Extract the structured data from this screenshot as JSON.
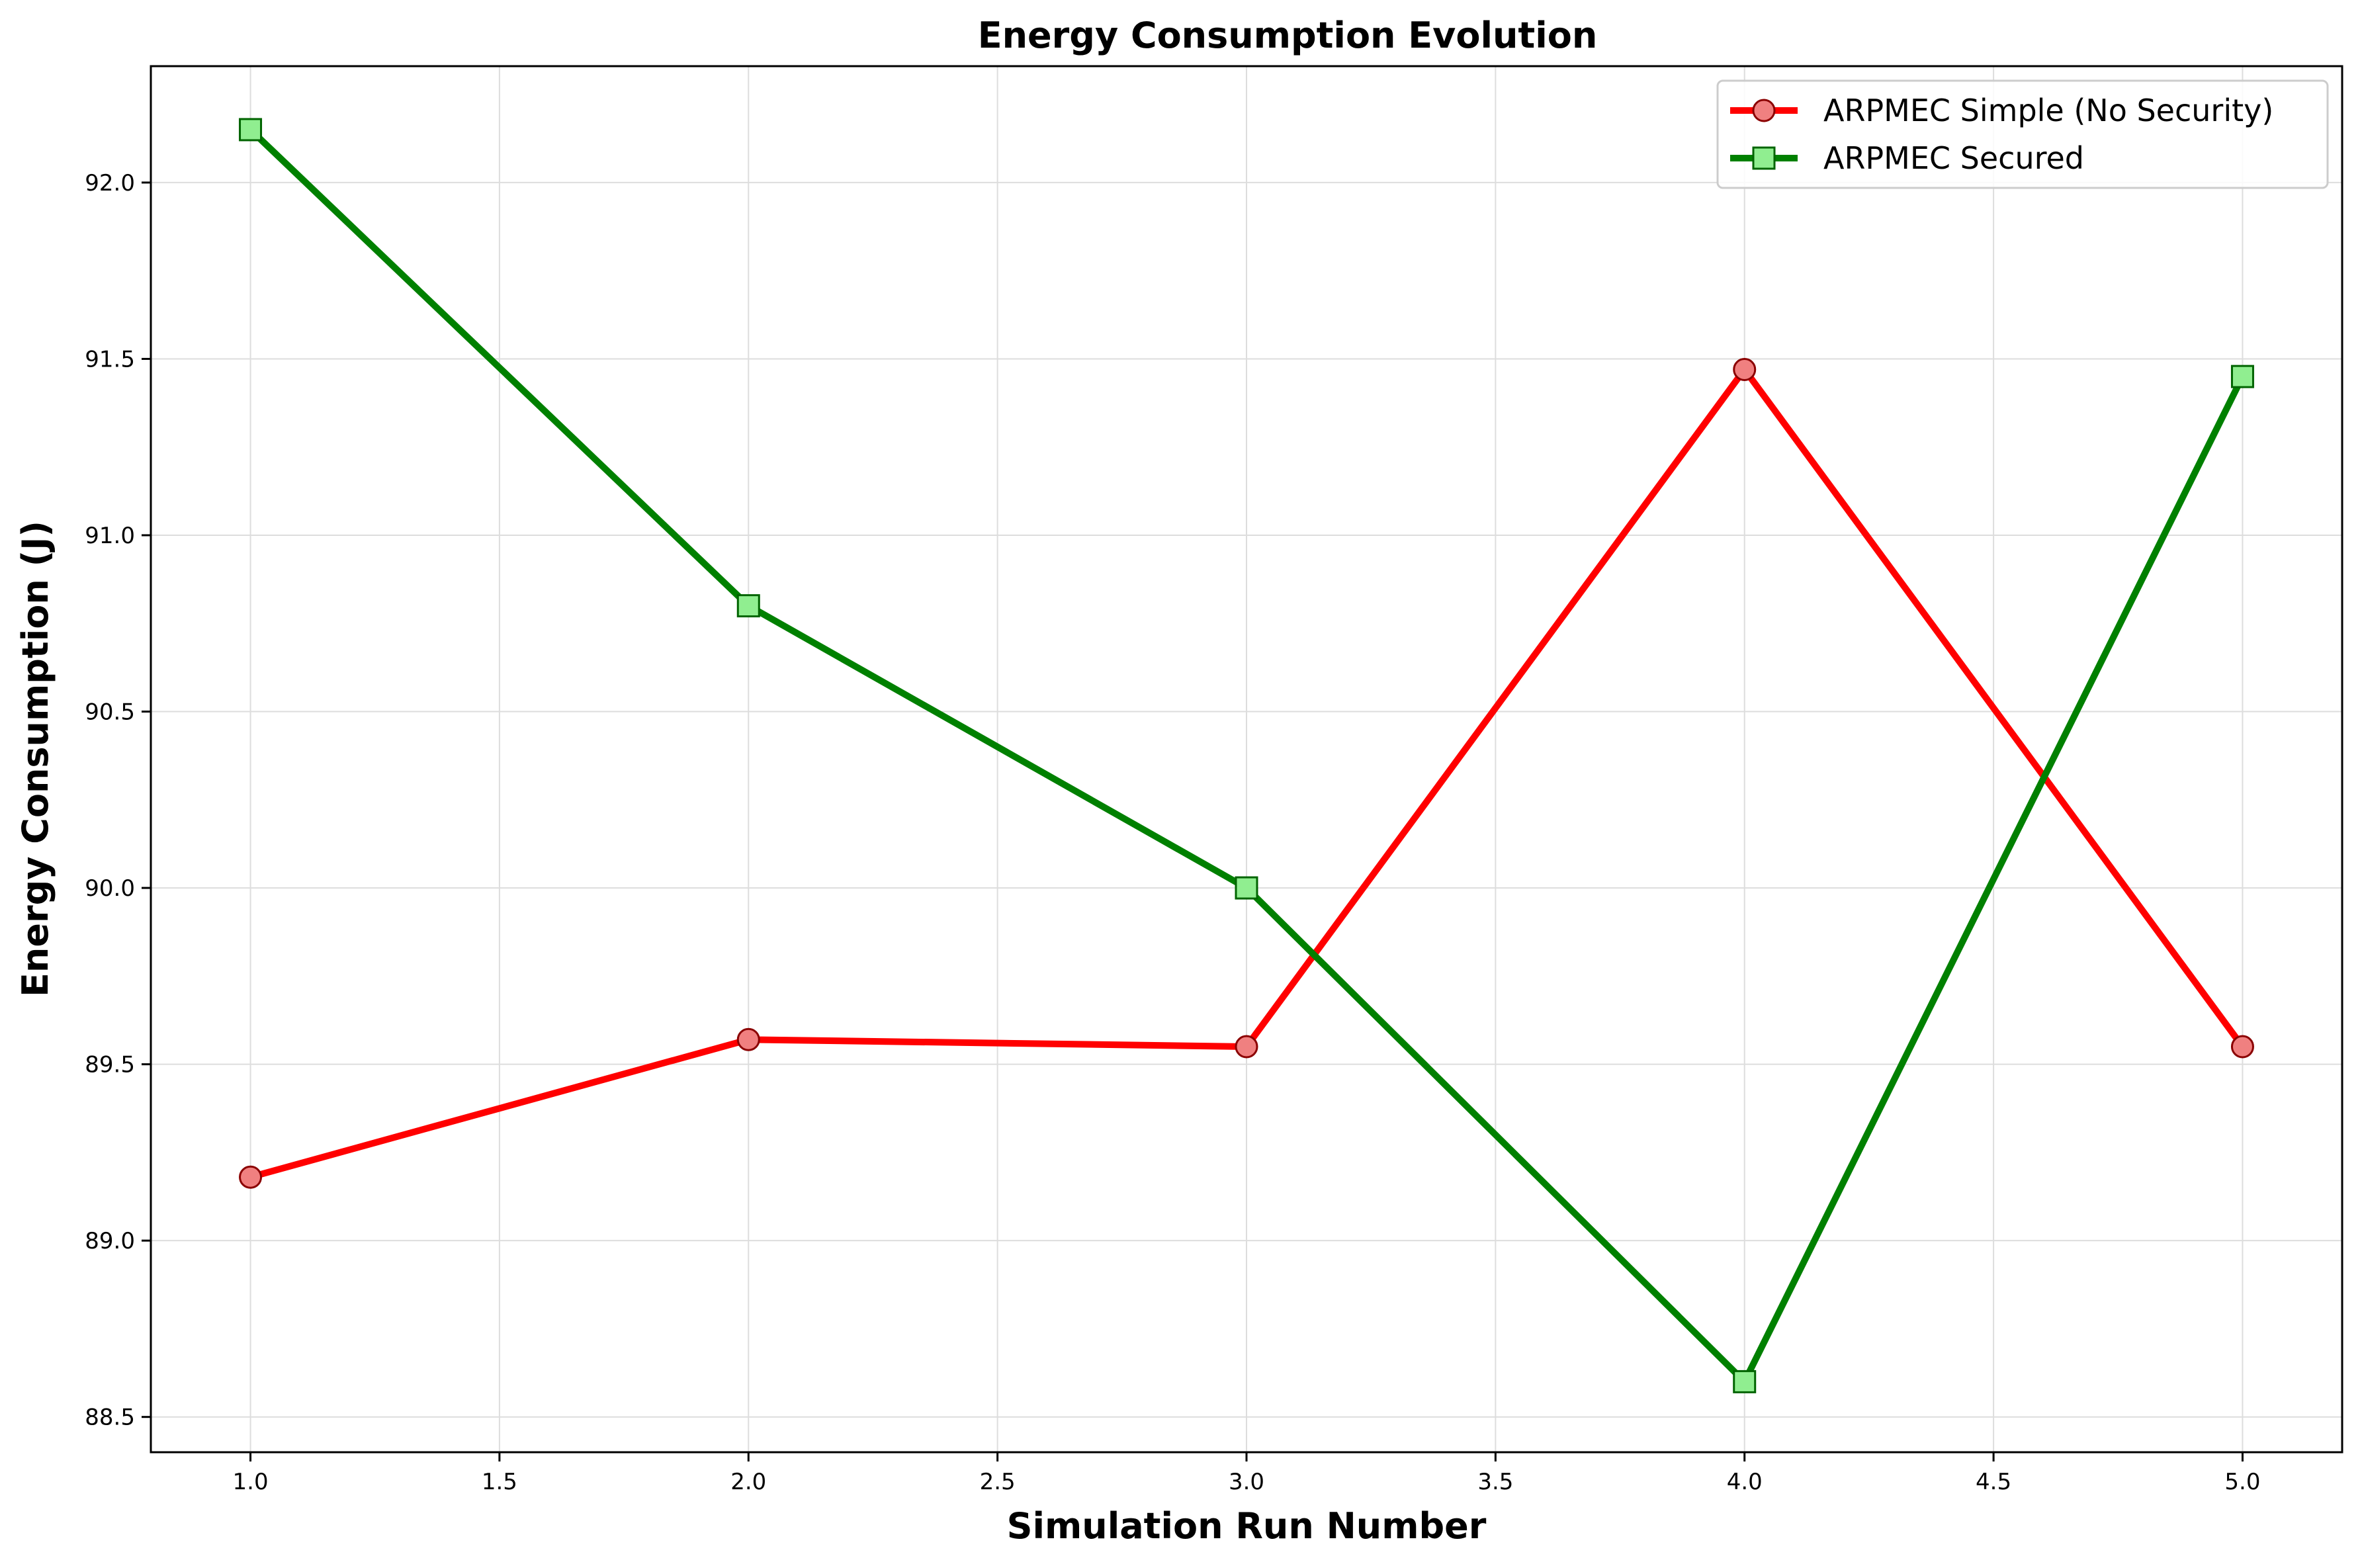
{
  "chart_data": {
    "type": "line",
    "title": "Energy Consumption Evolution",
    "xlabel": "Simulation Run Number",
    "ylabel": "Energy Consumption (J)",
    "xlim": [
      0.8,
      5.2
    ],
    "ylim": [
      88.4,
      92.33
    ],
    "xticks": [
      "1.0",
      "1.5",
      "2.0",
      "2.5",
      "3.0",
      "3.5",
      "4.0",
      "4.5",
      "5.0"
    ],
    "yticks": [
      "88.5",
      "89.0",
      "89.5",
      "90.0",
      "90.5",
      "91.0",
      "91.5",
      "92.0"
    ],
    "grid": true,
    "legend_position": "upper-right",
    "x": [
      1,
      2,
      3,
      4,
      5
    ],
    "series": [
      {
        "name": "ARPMEC Simple (No Security)",
        "values": [
          89.18,
          89.57,
          89.55,
          91.47,
          89.55
        ],
        "color": "#ff0000",
        "marker": "circle",
        "marker_fill": "#f08080",
        "marker_edge": "#8b0000"
      },
      {
        "name": "ARPMEC Secured",
        "values": [
          92.15,
          90.8,
          90.0,
          88.6,
          91.45
        ],
        "color": "#008000",
        "marker": "square",
        "marker_fill": "#90ee90",
        "marker_edge": "#006400"
      }
    ]
  }
}
